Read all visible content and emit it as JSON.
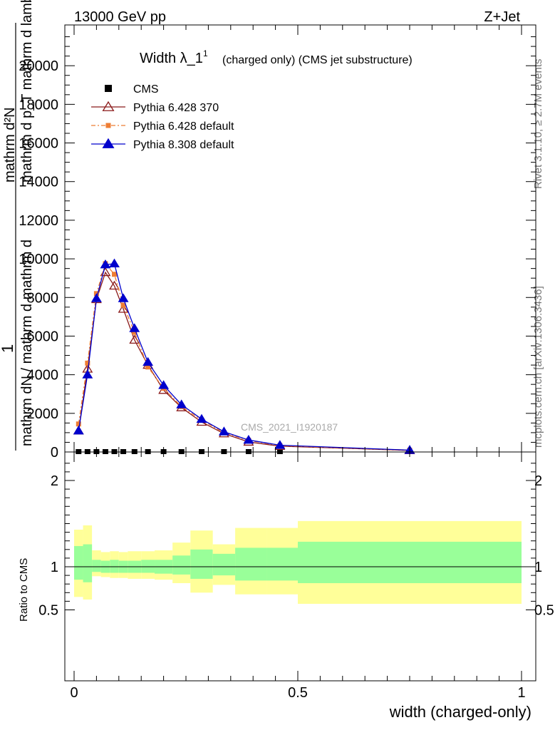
{
  "header": {
    "left": "13000 GeV pp",
    "right": "Z+Jet"
  },
  "side": {
    "rivet": "Rivet 3.1.10, ≥ 2.7M events",
    "mcplots": "mcplots.cern.ch [arXiv:1306.3436]"
  },
  "watermark": "CMS_2021_I1920187",
  "chart_data": [
    {
      "type": "line",
      "title": "Width λ_1",
      "title_sup": "1",
      "subtitle": "(charged only) (CMS jet substructure)",
      "ylabel_top": "mathrm d²N",
      "ylabel_top2": "mathrm d p_T mathrm d lambda",
      "ylabel_1": "1",
      "ylabel_bottom": "mathrm dN / mathrm d mathrm d",
      "ylabel_bottom2": "mathrm d",
      "xlim": [
        0,
        1
      ],
      "ylim": [
        0,
        22000
      ],
      "yticks": [
        0,
        2000,
        4000,
        6000,
        8000,
        10000,
        12000,
        14000,
        16000,
        18000,
        20000
      ],
      "ytick_labels": [
        "0",
        "2000",
        "4000",
        "6000",
        "8000",
        "10000",
        "12000",
        "14000",
        "16000",
        "18000",
        "20000"
      ],
      "legend": [
        {
          "name": "CMS",
          "color": "#000000",
          "marker": "square"
        },
        {
          "name": "Pythia 6.428 370",
          "color": "#8b1a1a",
          "marker": "triangle-open"
        },
        {
          "name": "Pythia 6.428 default",
          "color": "#ee7d34",
          "marker": "square-small"
        },
        {
          "name": "Pythia 8.308 default",
          "color": "#0000cc",
          "marker": "triangle"
        }
      ],
      "series": [
        {
          "name": "CMS",
          "x": [
            0.01,
            0.03,
            0.05,
            0.07,
            0.09,
            0.11,
            0.135,
            0.165,
            0.2,
            0.24,
            0.285,
            0.335,
            0.39,
            0.46
          ],
          "y": [
            0,
            0,
            0,
            0,
            0,
            0,
            0,
            0,
            0,
            0,
            0,
            0,
            0,
            0
          ]
        },
        {
          "name": "Pythia 6.428 370",
          "x": [
            0.01,
            0.03,
            0.05,
            0.07,
            0.09,
            0.11,
            0.135,
            0.165,
            0.2,
            0.24,
            0.285,
            0.335,
            0.39,
            0.46,
            0.75
          ],
          "y": [
            1100,
            4300,
            7900,
            9300,
            8600,
            7400,
            5800,
            4500,
            3200,
            2300,
            1550,
            950,
            520,
            300,
            80
          ]
        },
        {
          "name": "Pythia 6.428 default",
          "x": [
            0.01,
            0.03,
            0.05,
            0.07,
            0.09,
            0.11,
            0.135,
            0.165,
            0.2,
            0.24,
            0.285,
            0.335,
            0.39,
            0.46,
            0.75
          ],
          "y": [
            1450,
            4600,
            8200,
            9750,
            9200,
            7600,
            6200,
            4400,
            3300,
            2350,
            1650,
            1000,
            600,
            330,
            90
          ]
        },
        {
          "name": "Pythia 8.308 default",
          "x": [
            0.01,
            0.03,
            0.05,
            0.07,
            0.09,
            0.11,
            0.135,
            0.165,
            0.2,
            0.24,
            0.285,
            0.335,
            0.39,
            0.46,
            0.75
          ],
          "y": [
            1100,
            4000,
            7950,
            9700,
            9750,
            7950,
            6400,
            4650,
            3450,
            2450,
            1700,
            1050,
            620,
            350,
            95
          ]
        }
      ]
    },
    {
      "type": "area",
      "ylabel": "Ratio to CMS",
      "xlabel": "width (charged-only)",
      "xlim": [
        0,
        1
      ],
      "ylim": [
        0.35,
        2.3
      ],
      "xticks": [
        0,
        0.5,
        1
      ],
      "xtick_labels": [
        "0",
        "0.5",
        "1"
      ],
      "yticks": [
        0.5,
        1,
        2
      ],
      "ytick_labels": [
        "0.5",
        "1",
        "2"
      ],
      "band_colors": {
        "outer": "#ffff99",
        "inner": "#99ff99"
      },
      "bins": [
        {
          "x0": 0.0,
          "x1": 0.02,
          "outer_lo": 0.65,
          "outer_hi": 1.43,
          "inner_lo": 0.85,
          "inner_hi": 1.24
        },
        {
          "x0": 0.02,
          "x1": 0.04,
          "outer_lo": 0.62,
          "outer_hi": 1.48,
          "inner_lo": 0.82,
          "inner_hi": 1.26
        },
        {
          "x0": 0.04,
          "x1": 0.06,
          "outer_lo": 0.89,
          "outer_hi": 1.19,
          "inner_lo": 0.94,
          "inner_hi": 1.08
        },
        {
          "x0": 0.06,
          "x1": 0.08,
          "outer_lo": 0.88,
          "outer_hi": 1.17,
          "inner_lo": 0.93,
          "inner_hi": 1.07
        },
        {
          "x0": 0.08,
          "x1": 0.1,
          "outer_lo": 0.87,
          "outer_hi": 1.18,
          "inner_lo": 0.93,
          "inner_hi": 1.08
        },
        {
          "x0": 0.1,
          "x1": 0.12,
          "outer_lo": 0.87,
          "outer_hi": 1.17,
          "inner_lo": 0.93,
          "inner_hi": 1.07
        },
        {
          "x0": 0.12,
          "x1": 0.15,
          "outer_lo": 0.86,
          "outer_hi": 1.18,
          "inner_lo": 0.93,
          "inner_hi": 1.07
        },
        {
          "x0": 0.15,
          "x1": 0.18,
          "outer_lo": 0.86,
          "outer_hi": 1.18,
          "inner_lo": 0.93,
          "inner_hi": 1.08
        },
        {
          "x0": 0.18,
          "x1": 0.22,
          "outer_lo": 0.85,
          "outer_hi": 1.19,
          "inner_lo": 0.92,
          "inner_hi": 1.08
        },
        {
          "x0": 0.22,
          "x1": 0.26,
          "outer_lo": 0.81,
          "outer_hi": 1.28,
          "inner_lo": 0.91,
          "inner_hi": 1.13
        },
        {
          "x0": 0.26,
          "x1": 0.31,
          "outer_lo": 0.7,
          "outer_hi": 1.42,
          "inner_lo": 0.86,
          "inner_hi": 1.2
        },
        {
          "x0": 0.31,
          "x1": 0.36,
          "outer_lo": 0.79,
          "outer_hi": 1.26,
          "inner_lo": 0.9,
          "inner_hi": 1.15
        },
        {
          "x0": 0.36,
          "x1": 0.43,
          "outer_lo": 0.68,
          "outer_hi": 1.45,
          "inner_lo": 0.84,
          "inner_hi": 1.22
        },
        {
          "x0": 0.43,
          "x1": 0.5,
          "outer_lo": 0.68,
          "outer_hi": 1.45,
          "inner_lo": 0.84,
          "inner_hi": 1.22
        },
        {
          "x0": 0.5,
          "x1": 1.0,
          "outer_lo": 0.57,
          "outer_hi": 1.53,
          "inner_lo": 0.81,
          "inner_hi": 1.29
        }
      ],
      "reference": 1
    }
  ]
}
